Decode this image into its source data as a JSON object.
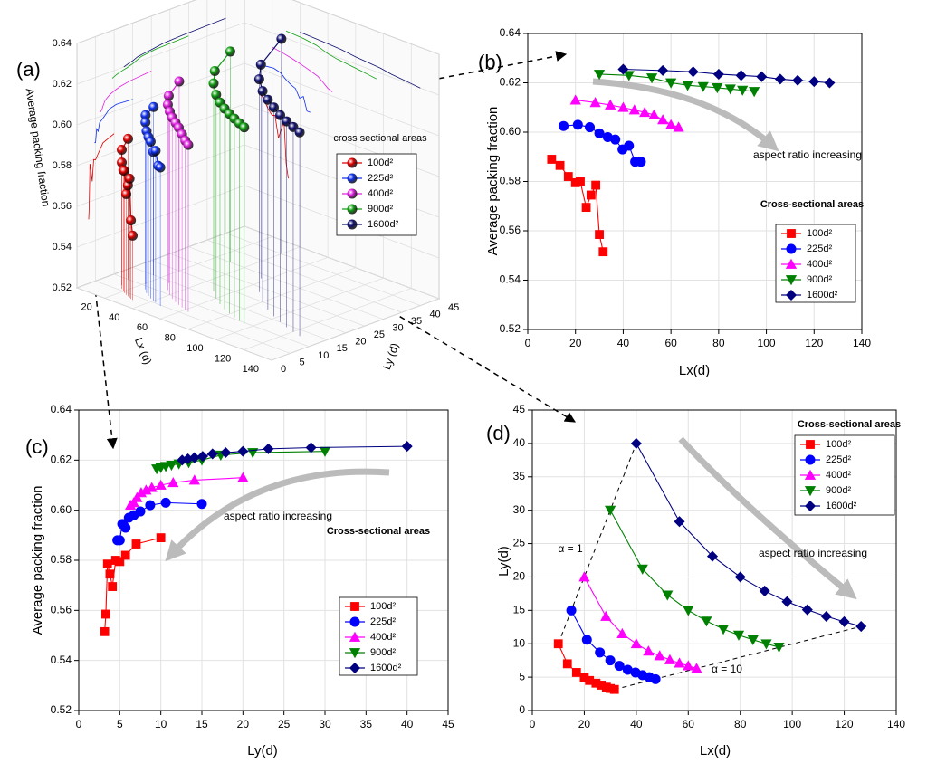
{
  "chart_data": [
    {
      "type": "scatter3d",
      "panel_label": "(a)",
      "xlabel": "Lx (d)",
      "ylabel": "Ly (d)",
      "zlabel": "Average packing fraction",
      "xlim": [
        0,
        140
      ],
      "ylim": [
        0,
        45
      ],
      "zlim": [
        0.52,
        0.64
      ],
      "xticks": [
        20,
        40,
        60,
        80,
        100,
        120,
        140
      ],
      "yticks": [
        0,
        5,
        10,
        15,
        20,
        25,
        30,
        35,
        40,
        45
      ],
      "zticks": [
        0.52,
        0.54,
        0.56,
        0.58,
        {
          "value": 0.6,
          "label": "0.60"
        },
        0.62,
        0.64
      ],
      "grid": true,
      "legend_title": "cross sectional areas",
      "series": [
        {
          "name": "100d²",
          "color": "#e00000",
          "marker": "sphere",
          "x": [
            10,
            13.5,
            17,
            20,
            22,
            24.5,
            26.5,
            28.5,
            30,
            31.6
          ],
          "y": [
            10,
            7,
            5.7,
            5,
            4.5,
            4.1,
            3.8,
            3.5,
            3.3,
            3.16
          ],
          "values": [
            0.589,
            0.5865,
            0.582,
            0.5795,
            0.58,
            0.5695,
            0.5745,
            0.5785,
            0.5585,
            0.5515
          ]
        },
        {
          "name": "225d²",
          "color": "#1030f0",
          "marker": "sphere",
          "x": [
            15,
            21,
            26,
            30,
            33.5,
            36.7,
            39.7,
            42.4,
            45,
            47.4
          ],
          "y": [
            15,
            10.6,
            8.7,
            7.5,
            6.7,
            6.1,
            5.7,
            5.3,
            5,
            4.7
          ],
          "values": [
            0.6025,
            0.603,
            0.602,
            0.5995,
            0.598,
            0.597,
            0.593,
            0.5945,
            0.588,
            0.588
          ]
        },
        {
          "name": "400d²",
          "color": "#e020e0",
          "marker": "sphere",
          "x": [
            20,
            28.3,
            34.6,
            40,
            44.7,
            49,
            52.9,
            56.6,
            60,
            63.2
          ],
          "y": [
            20,
            14.1,
            11.5,
            10,
            8.9,
            8.2,
            7.6,
            7.1,
            6.7,
            6.3
          ],
          "values": [
            0.613,
            0.612,
            0.611,
            0.61,
            0.609,
            0.608,
            0.607,
            0.605,
            0.603,
            0.602
          ]
        },
        {
          "name": "900d²",
          "color": "#10a010",
          "marker": "sphere",
          "x": [
            30,
            42.4,
            52,
            60,
            67,
            73.5,
            79.4,
            84.9,
            90,
            94.9
          ],
          "y": [
            30,
            21.2,
            17.3,
            15,
            13.4,
            12.2,
            11.3,
            10.6,
            10,
            9.5
          ],
          "values": [
            0.6235,
            0.623,
            0.622,
            0.62,
            0.619,
            0.6185,
            0.618,
            0.6175,
            0.617,
            0.6165
          ]
        },
        {
          "name": "1600d²",
          "color": "#101070",
          "marker": "sphere",
          "x": [
            40,
            56.6,
            69.3,
            80,
            89.4,
            98,
            105.8,
            113.1,
            120,
            126.5
          ],
          "y": [
            40,
            28.3,
            23.1,
            20,
            17.9,
            16.3,
            15.1,
            14.1,
            13.3,
            12.6
          ],
          "values": [
            0.6255,
            0.625,
            0.6245,
            0.6235,
            0.623,
            0.6225,
            0.6215,
            0.621,
            0.6205,
            0.62
          ]
        }
      ]
    },
    {
      "type": "line",
      "panel_label": "(b)",
      "xlabel": "Lx(d)",
      "ylabel": "Average packing fraction",
      "xlim": [
        0,
        140
      ],
      "ylim": [
        0.52,
        0.64
      ],
      "xticks": [
        0,
        20,
        40,
        60,
        80,
        100,
        120,
        140
      ],
      "yticks": [
        0.52,
        0.54,
        0.56,
        0.58,
        {
          "value": 0.6,
          "label": "0.60"
        },
        0.62,
        0.64
      ],
      "grid": true,
      "legend_title": "Cross-sectional areas",
      "annotations": [
        "aspect ratio increasing"
      ],
      "series": [
        {
          "name": "100d²",
          "color": "#ff0000",
          "marker": "square",
          "x": [
            10,
            13.5,
            17,
            20,
            22,
            24.5,
            26.5,
            28.5,
            30,
            31.6
          ],
          "values": [
            0.589,
            0.5865,
            0.582,
            0.5795,
            0.58,
            0.5695,
            0.5745,
            0.5785,
            0.5585,
            0.5515
          ]
        },
        {
          "name": "225d²",
          "color": "#0000ff",
          "marker": "circle",
          "x": [
            15,
            21,
            26,
            30,
            33.5,
            36.7,
            39.7,
            42.4,
            45,
            47.4
          ],
          "values": [
            0.6025,
            0.603,
            0.602,
            0.5995,
            0.598,
            0.597,
            0.593,
            0.5945,
            0.588,
            0.588
          ]
        },
        {
          "name": "400d²",
          "color": "#ff00ff",
          "marker": "triangle-up",
          "x": [
            20,
            28.3,
            34.6,
            40,
            44.7,
            49,
            52.9,
            56.6,
            60,
            63.2
          ],
          "values": [
            0.613,
            0.612,
            0.611,
            0.61,
            0.609,
            0.608,
            0.607,
            0.605,
            0.603,
            0.602
          ]
        },
        {
          "name": "900d²",
          "color": "#008000",
          "marker": "triangle-down",
          "x": [
            30,
            42.4,
            52,
            60,
            67,
            73.5,
            79.4,
            84.9,
            90,
            94.9
          ],
          "values": [
            0.6235,
            0.623,
            0.622,
            0.62,
            0.619,
            0.6185,
            0.618,
            0.6175,
            0.617,
            0.6165
          ]
        },
        {
          "name": "1600d²",
          "color": "#000080",
          "marker": "diamond",
          "x": [
            40,
            56.6,
            69.3,
            80,
            89.4,
            98,
            105.8,
            113.1,
            120,
            126.5
          ],
          "values": [
            0.6255,
            0.625,
            0.6245,
            0.6235,
            0.623,
            0.6225,
            0.6215,
            0.621,
            0.6205,
            0.62
          ]
        }
      ]
    },
    {
      "type": "line",
      "panel_label": "(c)",
      "xlabel": "Ly(d)",
      "ylabel": "Average packing fraction",
      "xlim": [
        0,
        45
      ],
      "ylim": [
        0.52,
        0.64
      ],
      "xticks": [
        0,
        5,
        10,
        15,
        20,
        25,
        30,
        35,
        40,
        45
      ],
      "yticks": [
        0.52,
        0.54,
        0.56,
        0.58,
        {
          "value": 0.6,
          "label": "0.60"
        },
        0.62,
        0.64
      ],
      "grid": true,
      "legend_title": "Cross-sectional areas",
      "annotations": [
        "aspect ratio increasing"
      ],
      "series": [
        {
          "name": "100d²",
          "color": "#ff0000",
          "marker": "square",
          "x": [
            10,
            7,
            5.7,
            5,
            4.5,
            4.1,
            3.8,
            3.5,
            3.3,
            3.16
          ],
          "values": [
            0.589,
            0.5865,
            0.582,
            0.5795,
            0.58,
            0.5695,
            0.5745,
            0.5785,
            0.5585,
            0.5515
          ]
        },
        {
          "name": "225d²",
          "color": "#0000ff",
          "marker": "circle",
          "x": [
            15,
            10.6,
            8.7,
            7.5,
            6.7,
            6.1,
            5.7,
            5.3,
            5,
            4.7
          ],
          "values": [
            0.6025,
            0.603,
            0.602,
            0.5995,
            0.598,
            0.597,
            0.593,
            0.5945,
            0.588,
            0.588
          ]
        },
        {
          "name": "400d²",
          "color": "#ff00ff",
          "marker": "triangle-up",
          "x": [
            20,
            14.1,
            11.5,
            10,
            8.9,
            8.2,
            7.6,
            7.1,
            6.7,
            6.3
          ],
          "values": [
            0.613,
            0.612,
            0.611,
            0.61,
            0.609,
            0.608,
            0.607,
            0.605,
            0.603,
            0.602
          ]
        },
        {
          "name": "900d²",
          "color": "#008000",
          "marker": "triangle-down",
          "x": [
            30,
            21.2,
            17.3,
            15,
            13.4,
            12.2,
            11.3,
            10.6,
            10,
            9.5
          ],
          "values": [
            0.6235,
            0.623,
            0.622,
            0.62,
            0.619,
            0.6185,
            0.618,
            0.6175,
            0.617,
            0.6165
          ]
        },
        {
          "name": "1600d²",
          "color": "#000080",
          "marker": "diamond",
          "x": [
            40,
            28.3,
            23.1,
            20,
            17.9,
            16.3,
            15.1,
            14.1,
            13.3,
            12.6
          ],
          "values": [
            0.6255,
            0.625,
            0.6245,
            0.6235,
            0.623,
            0.6225,
            0.6215,
            0.621,
            0.6205,
            0.62
          ]
        }
      ]
    },
    {
      "type": "line",
      "panel_label": "(d)",
      "xlabel": "Lx(d)",
      "ylabel": "Ly(d)",
      "xlim": [
        0,
        140
      ],
      "ylim": [
        0,
        45
      ],
      "xticks": [
        0,
        20,
        40,
        60,
        80,
        100,
        120,
        140
      ],
      "yticks": [
        0,
        5,
        10,
        15,
        20,
        25,
        30,
        35,
        40,
        45
      ],
      "grid": true,
      "legend_title": "Cross-sectional areas",
      "annotations": [
        "α = 1",
        "α = 10",
        "aspect ratio increasing"
      ],
      "series": [
        {
          "name": "100d²",
          "color": "#ff0000",
          "marker": "square",
          "x": [
            10,
            13.5,
            17,
            20,
            22,
            24.5,
            26.5,
            28.5,
            30,
            31.6
          ],
          "values": [
            10,
            7,
            5.7,
            5,
            4.5,
            4.1,
            3.8,
            3.5,
            3.3,
            3.16
          ]
        },
        {
          "name": "225d²",
          "color": "#0000ff",
          "marker": "circle",
          "x": [
            15,
            21,
            26,
            30,
            33.5,
            36.7,
            39.7,
            42.4,
            45,
            47.4
          ],
          "values": [
            15,
            10.6,
            8.7,
            7.5,
            6.7,
            6.1,
            5.7,
            5.3,
            5,
            4.7
          ]
        },
        {
          "name": "400d²",
          "color": "#ff00ff",
          "marker": "triangle-up",
          "x": [
            20,
            28.3,
            34.6,
            40,
            44.7,
            49,
            52.9,
            56.6,
            60,
            63.2
          ],
          "values": [
            20,
            14.1,
            11.5,
            10,
            8.9,
            8.2,
            7.6,
            7.1,
            6.7,
            6.3
          ]
        },
        {
          "name": "900d²",
          "color": "#008000",
          "marker": "triangle-down",
          "x": [
            30,
            42.4,
            52,
            60,
            67,
            73.5,
            79.4,
            84.9,
            90,
            94.9
          ],
          "values": [
            30,
            21.2,
            17.3,
            15,
            13.4,
            12.2,
            11.3,
            10.6,
            10,
            9.5
          ]
        },
        {
          "name": "1600d²",
          "color": "#000080",
          "marker": "diamond",
          "x": [
            40,
            56.6,
            69.3,
            80,
            89.4,
            98,
            105.8,
            113.1,
            120,
            126.5
          ],
          "values": [
            40,
            28.3,
            23.1,
            20,
            17.9,
            16.3,
            15.1,
            14.1,
            13.3,
            12.6
          ]
        }
      ]
    }
  ]
}
